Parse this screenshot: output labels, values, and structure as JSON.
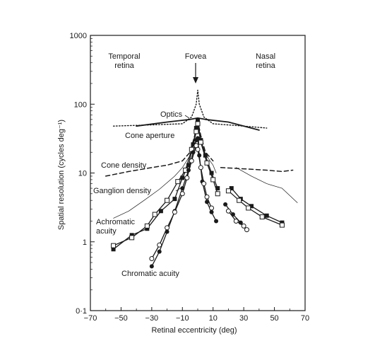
{
  "chart_data": {
    "type": "line",
    "xlabel": "Retinal eccentricity (deg)",
    "ylabel": "Spatial resolution (cycles deg⁻¹)",
    "xlim": [
      -70,
      70
    ],
    "ylim": [
      0.1,
      1000
    ],
    "yscale": "log",
    "x_tick_labels": [
      "−70",
      "−50",
      "−30",
      "−10",
      "10",
      "30",
      "50",
      "70"
    ],
    "x_tick_values": [
      -70,
      -50,
      -30,
      -10,
      10,
      30,
      50,
      70
    ],
    "y_tick_labels": [
      "0·1",
      "1",
      "10",
      "100",
      "1000"
    ],
    "y_tick_values": [
      0.1,
      1,
      10,
      100,
      1000
    ],
    "annotations": {
      "temporal_line1": "Temporal",
      "temporal_line2": "retina",
      "fovea": "Fovea",
      "nasal_line1": "Nasal",
      "nasal_line2": "retina",
      "optics": "Optics",
      "cone_aperture": "Cone aperture",
      "cone_density": "Cone density",
      "ganglion_density": "Ganglion density",
      "achromatic_line1": "Achromatic",
      "achromatic_line2": "acuity",
      "chromatic_acuity": "Chromatic acuity"
    },
    "series": [
      {
        "key": "optics",
        "style": "solid-thick",
        "marker": "none",
        "segments": [
          [
            [
              -40,
              48
            ],
            [
              -20,
              55
            ],
            [
              -5,
              60
            ],
            [
              0,
              63
            ],
            [
              5,
              60
            ],
            [
              20,
              55
            ],
            [
              40,
              42
            ]
          ]
        ]
      },
      {
        "key": "cone_aperture",
        "style": "dotted",
        "marker": "none",
        "segments": [
          [
            [
              -55,
              48
            ],
            [
              -30,
              50
            ],
            [
              -10,
              52
            ],
            [
              -4,
              65
            ],
            [
              -1,
              100
            ],
            [
              0,
              160
            ],
            [
              1,
              100
            ],
            [
              4,
              65
            ],
            [
              10,
              52
            ],
            [
              30,
              48
            ],
            [
              45,
              45
            ]
          ]
        ]
      },
      {
        "key": "cone_density",
        "style": "dashed",
        "marker": "none",
        "segments": [
          [
            [
              -60,
              9
            ],
            [
              -45,
              10.5
            ],
            [
              -30,
              12
            ],
            [
              -20,
              13
            ],
            [
              -10,
              15
            ],
            [
              -5,
              20
            ],
            [
              -2,
              35
            ],
            [
              0,
              57
            ],
            [
              2,
              35
            ],
            [
              5,
              20
            ],
            [
              10,
              15
            ]
          ],
          [
            [
              15,
              12
            ],
            [
              30,
              11.5
            ],
            [
              45,
              11
            ],
            [
              55,
              10.5
            ],
            [
              62,
              11
            ]
          ]
        ]
      },
      {
        "key": "ganglion_density",
        "style": "solid-thin",
        "marker": "none",
        "segments": [
          [
            [
              -55,
              2.2
            ],
            [
              -45,
              2.8
            ],
            [
              -35,
              4
            ],
            [
              -25,
              5.8
            ],
            [
              -15,
              9
            ],
            [
              -10,
              12
            ],
            [
              -5,
              18
            ],
            [
              -3,
              25
            ],
            [
              -1,
              38
            ],
            [
              0,
              50
            ],
            [
              1,
              38
            ],
            [
              3,
              25
            ],
            [
              5,
              19
            ],
            [
              8,
              15
            ],
            [
              10,
              13
            ],
            [
              12,
              10
            ]
          ],
          [
            [
              25,
              12
            ],
            [
              35,
              9
            ],
            [
              45,
              7
            ],
            [
              55,
              6
            ],
            [
              65,
              3.7
            ]
          ]
        ]
      },
      {
        "key": "achromatic_filled_squares",
        "style": "solid",
        "marker": "filled-square",
        "segments": [
          [
            [
              -55,
              0.78
            ],
            [
              -43,
              1.25
            ],
            [
              -33,
              1.55
            ],
            [
              -24,
              2.8
            ],
            [
              -15,
              4.2
            ],
            [
              -10,
              8.5
            ],
            [
              -6,
              13
            ],
            [
              -3,
              26
            ],
            [
              -1,
              45
            ],
            [
              0,
              58
            ],
            [
              2,
              30
            ],
            [
              5,
              18
            ],
            [
              9,
              10
            ],
            [
              13,
              6
            ]
          ],
          [
            [
              22,
              6
            ],
            [
              28,
              4.2
            ],
            [
              35,
              3.3
            ],
            [
              45,
              2.4
            ],
            [
              55,
              1.9
            ]
          ]
        ]
      },
      {
        "key": "achromatic_open_squares",
        "style": "solid",
        "marker": "open-square",
        "segments": [
          [
            [
              -55,
              0.88
            ],
            [
              -43,
              1.15
            ],
            [
              -33,
              1.7
            ],
            [
              -28,
              2.5
            ],
            [
              -20,
              4
            ],
            [
              -13,
              7.5
            ],
            [
              -8,
              11
            ],
            [
              -4,
              22
            ],
            [
              -1,
              40
            ],
            [
              0,
              52
            ],
            [
              2,
              28
            ],
            [
              6,
              14
            ],
            [
              10,
              8
            ],
            [
              13,
              5
            ]
          ],
          [
            [
              20,
              5.5
            ],
            [
              27,
              4
            ],
            [
              33,
              3.1
            ],
            [
              42,
              2.3
            ],
            [
              55,
              1.75
            ]
          ]
        ]
      },
      {
        "key": "chromatic_filled_circles",
        "style": "solid",
        "marker": "filled-circle",
        "segments": [
          [
            [
              -30,
              0.44
            ],
            [
              -25,
              0.72
            ],
            [
              -20,
              1.4
            ],
            [
              -15,
              2.8
            ],
            [
              -10,
              6
            ],
            [
              -6,
              11
            ],
            [
              -3,
              20
            ],
            [
              -1,
              30
            ],
            [
              0,
              32
            ],
            [
              1,
              18
            ],
            [
              3,
              7.5
            ],
            [
              6,
              3.8
            ],
            [
              9,
              2.7
            ],
            [
              12,
              2
            ]
          ],
          [
            [
              18,
              3.5
            ],
            [
              23,
              2.5
            ],
            [
              28,
              1.9
            ],
            [
              32,
              1.5
            ]
          ]
        ]
      },
      {
        "key": "chromatic_open_circles",
        "style": "solid",
        "marker": "open-circle",
        "segments": [
          [
            [
              -30,
              0.57
            ],
            [
              -25,
              0.9
            ],
            [
              -20,
              1.6
            ],
            [
              -15,
              2.7
            ],
            [
              -10,
              5
            ],
            [
              -7,
              8.5
            ],
            [
              -4,
              15
            ],
            [
              -1,
              25
            ],
            [
              0,
              22
            ],
            [
              2,
              12
            ],
            [
              4,
              7
            ],
            [
              6,
              4.5
            ],
            [
              9,
              3.1
            ]
          ],
          [
            [
              20,
              2.8
            ],
            [
              25,
              2
            ],
            [
              30,
              1.7
            ],
            [
              32,
              1.5
            ]
          ]
        ]
      }
    ]
  }
}
